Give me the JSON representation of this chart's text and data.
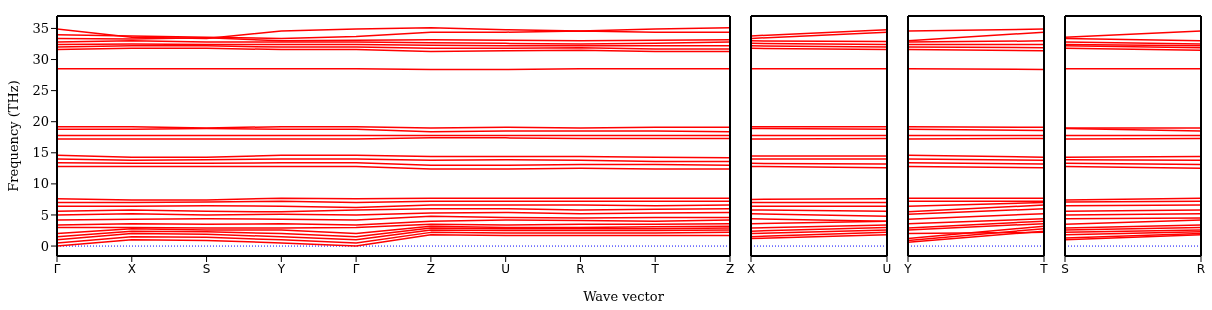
{
  "chart_data": [
    {
      "type": "line",
      "xlabel": "Wave vector",
      "ylabel": "Frequency (THz)",
      "categories": [
        "Γ",
        "X",
        "S",
        "Y",
        "Γ",
        "Z",
        "U",
        "R",
        "T",
        "Z"
      ],
      "ylim": [
        -1.6,
        37
      ],
      "yticks": [
        0,
        5,
        10,
        15,
        20,
        25,
        30,
        35
      ],
      "grid": false,
      "legend": false,
      "marker": "none",
      "line_style": "solid",
      "ref_lines": [
        {
          "axis": "y",
          "value": 0,
          "color": "#0000ff",
          "line_style": "dotted"
        }
      ],
      "series": [
        {
          "color": "#ff0000",
          "values": [
            0,
            1.0,
            0.9,
            0.5,
            0,
            1.8,
            1.7,
            1.7,
            1.7,
            1.7
          ]
        },
        {
          "color": "#ff0000",
          "values": [
            0.5,
            1.5,
            1.4,
            1.0,
            0.5,
            2.2,
            2.1,
            2.1,
            2.1,
            2.2
          ]
        },
        {
          "color": "#ff0000",
          "values": [
            1.0,
            2.0,
            1.9,
            1.5,
            1.0,
            2.6,
            2.5,
            2.5,
            2.5,
            2.6
          ]
        },
        {
          "color": "#ff0000",
          "values": [
            1.5,
            2.4,
            2.3,
            2.0,
            1.5,
            2.9,
            2.8,
            2.8,
            2.8,
            2.9
          ]
        },
        {
          "color": "#ff0000",
          "values": [
            2.0,
            2.8,
            2.6,
            2.6,
            2.0,
            3.2,
            3.0,
            3.0,
            3.1,
            3.2
          ]
        },
        {
          "color": "#ff0000",
          "values": [
            3.0,
            3.0,
            2.9,
            2.9,
            3.0,
            3.5,
            3.4,
            3.5,
            3.5,
            3.6
          ]
        },
        {
          "color": "#ff0000",
          "values": [
            3.4,
            3.6,
            3.5,
            3.6,
            3.4,
            4.0,
            4.2,
            4.1,
            4.0,
            4.2
          ]
        },
        {
          "color": "#ff0000",
          "values": [
            4.2,
            4.3,
            4.4,
            4.3,
            4.2,
            4.8,
            4.6,
            4.5,
            4.6,
            4.6
          ]
        },
        {
          "color": "#ff0000",
          "values": [
            5.0,
            5.2,
            5.0,
            5.1,
            5.0,
            5.3,
            5.4,
            5.2,
            5.3,
            5.4
          ]
        },
        {
          "color": "#ff0000",
          "values": [
            5.6,
            5.8,
            5.6,
            5.5,
            5.8,
            6.0,
            6.0,
            5.8,
            5.9,
            6.0
          ]
        },
        {
          "color": "#ff0000",
          "values": [
            6.4,
            6.4,
            6.5,
            6.4,
            6.2,
            6.6,
            6.6,
            6.6,
            6.5,
            6.6
          ]
        },
        {
          "color": "#ff0000",
          "values": [
            7.0,
            7.0,
            7.1,
            7.2,
            7.0,
            7.2,
            7.2,
            7.2,
            7.2,
            7.2
          ]
        },
        {
          "color": "#ff0000",
          "values": [
            7.6,
            7.4,
            7.4,
            7.7,
            7.6,
            7.7,
            7.7,
            7.7,
            7.7,
            7.7
          ]
        },
        {
          "color": "#ff0000",
          "values": [
            12.8,
            12.8,
            12.8,
            12.8,
            12.8,
            12.4,
            12.4,
            12.5,
            12.4,
            12.4
          ]
        },
        {
          "color": "#ff0000",
          "values": [
            13.4,
            13.3,
            13.3,
            13.4,
            13.4,
            13.0,
            13.0,
            13.1,
            13.1,
            13.0
          ]
        },
        {
          "color": "#ff0000",
          "values": [
            14.0,
            13.8,
            13.9,
            14.0,
            14.0,
            13.8,
            13.9,
            13.8,
            13.6,
            13.6
          ]
        },
        {
          "color": "#ff0000",
          "values": [
            14.6,
            14.3,
            14.3,
            14.6,
            14.6,
            14.4,
            14.4,
            14.4,
            14.3,
            14.2
          ]
        },
        {
          "color": "#ff0000",
          "values": [
            17.2,
            17.2,
            17.2,
            17.2,
            17.2,
            17.4,
            17.4,
            17.3,
            17.3,
            17.3
          ]
        },
        {
          "color": "#ff0000",
          "values": [
            17.8,
            17.8,
            17.8,
            17.8,
            17.8,
            17.8,
            17.8,
            17.8,
            17.8,
            17.8
          ]
        },
        {
          "color": "#ff0000",
          "values": [
            18.8,
            18.8,
            18.9,
            18.8,
            18.8,
            18.4,
            18.5,
            18.5,
            18.5,
            18.4
          ]
        },
        {
          "color": "#ff0000",
          "values": [
            19.2,
            19.2,
            19.0,
            19.2,
            19.2,
            19.0,
            19.1,
            19.0,
            19.1,
            19.1
          ]
        },
        {
          "color": "#ff0000",
          "values": [
            28.5,
            28.5,
            28.5,
            28.5,
            28.5,
            28.4,
            28.4,
            28.5,
            28.5,
            28.5
          ]
        },
        {
          "color": "#ff0000",
          "values": [
            31.6,
            31.8,
            31.8,
            31.6,
            31.6,
            31.3,
            31.4,
            31.5,
            31.3,
            31.3
          ]
        },
        {
          "color": "#ff0000",
          "values": [
            32.0,
            32.2,
            32.2,
            32.0,
            32.0,
            31.8,
            31.8,
            31.9,
            31.7,
            31.7
          ]
        },
        {
          "color": "#ff0000",
          "values": [
            32.4,
            32.5,
            32.4,
            32.4,
            32.4,
            32.3,
            32.2,
            32.2,
            32.2,
            32.2
          ]
        },
        {
          "color": "#ff0000",
          "values": [
            32.8,
            33.0,
            32.8,
            32.8,
            32.8,
            32.7,
            32.6,
            32.5,
            32.6,
            32.8
          ]
        },
        {
          "color": "#ff0000",
          "values": [
            33.4,
            33.3,
            33.5,
            33.0,
            33.1,
            33.2,
            33.1,
            33.0,
            33.1,
            33.2
          ]
        },
        {
          "color": "#ff0000",
          "values": [
            34.0,
            33.8,
            33.6,
            33.4,
            33.7,
            34.4,
            34.4,
            34.6,
            34.4,
            34.4
          ]
        },
        {
          "color": "#ff0000",
          "values": [
            34.9,
            33.6,
            33.4,
            34.6,
            34.9,
            35.1,
            34.8,
            34.6,
            34.9,
            35.1
          ]
        }
      ]
    },
    {
      "type": "line",
      "categories": [
        "X",
        "U"
      ],
      "ylim": [
        -1.6,
        37
      ],
      "tick_labels": "x",
      "legend": false,
      "marker": "none",
      "line_style": "solid",
      "ref_lines": [
        {
          "axis": "y",
          "value": 0,
          "color": "#0000ff",
          "line_style": "dotted"
        }
      ],
      "series": [
        {
          "color": "#ff0000",
          "values": [
            1.2,
            1.8
          ]
        },
        {
          "color": "#ff0000",
          "values": [
            1.5,
            2.2
          ]
        },
        {
          "color": "#ff0000",
          "values": [
            2.0,
            2.6
          ]
        },
        {
          "color": "#ff0000",
          "values": [
            2.4,
            3.0
          ]
        },
        {
          "color": "#ff0000",
          "values": [
            2.9,
            3.4
          ]
        },
        {
          "color": "#ff0000",
          "values": [
            3.6,
            4.0
          ]
        },
        {
          "color": "#ff0000",
          "values": [
            4.4,
            4.0
          ]
        },
        {
          "color": "#ff0000",
          "values": [
            5.2,
            4.8
          ]
        },
        {
          "color": "#ff0000",
          "values": [
            5.8,
            5.6
          ]
        },
        {
          "color": "#ff0000",
          "values": [
            6.4,
            6.4
          ]
        },
        {
          "color": "#ff0000",
          "values": [
            7.0,
            7.0
          ]
        },
        {
          "color": "#ff0000",
          "values": [
            7.5,
            7.6
          ]
        },
        {
          "color": "#ff0000",
          "values": [
            12.8,
            12.6
          ]
        },
        {
          "color": "#ff0000",
          "values": [
            13.3,
            13.2
          ]
        },
        {
          "color": "#ff0000",
          "values": [
            14.0,
            14.0
          ]
        },
        {
          "color": "#ff0000",
          "values": [
            14.5,
            14.5
          ]
        },
        {
          "color": "#ff0000",
          "values": [
            17.2,
            17.3
          ]
        },
        {
          "color": "#ff0000",
          "values": [
            17.8,
            17.8
          ]
        },
        {
          "color": "#ff0000",
          "values": [
            18.9,
            18.8
          ]
        },
        {
          "color": "#ff0000",
          "values": [
            19.2,
            19.2
          ]
        },
        {
          "color": "#ff0000",
          "values": [
            28.5,
            28.5
          ]
        },
        {
          "color": "#ff0000",
          "values": [
            31.8,
            31.6
          ]
        },
        {
          "color": "#ff0000",
          "values": [
            32.2,
            32.0
          ]
        },
        {
          "color": "#ff0000",
          "values": [
            32.6,
            32.4
          ]
        },
        {
          "color": "#ff0000",
          "values": [
            33.0,
            32.9
          ]
        },
        {
          "color": "#ff0000",
          "values": [
            33.4,
            34.4
          ]
        },
        {
          "color": "#ff0000",
          "values": [
            33.8,
            34.8
          ]
        }
      ]
    },
    {
      "type": "line",
      "categories": [
        "Y",
        "T"
      ],
      "ylim": [
        -1.6,
        37
      ],
      "tick_labels": "x",
      "legend": false,
      "marker": "none",
      "line_style": "solid",
      "ref_lines": [
        {
          "axis": "y",
          "value": 0,
          "color": "#0000ff",
          "line_style": "dotted"
        }
      ],
      "series": [
        {
          "color": "#ff0000",
          "values": [
            0.6,
            2.4
          ]
        },
        {
          "color": "#ff0000",
          "values": [
            0.9,
            2.8
          ]
        },
        {
          "color": "#ff0000",
          "values": [
            1.2,
            3.2
          ]
        },
        {
          "color": "#ff0000",
          "values": [
            2.0,
            2.2
          ]
        },
        {
          "color": "#ff0000",
          "values": [
            2.6,
            3.6
          ]
        },
        {
          "color": "#ff0000",
          "values": [
            2.9,
            4.0
          ]
        },
        {
          "color": "#ff0000",
          "values": [
            3.6,
            4.4
          ]
        },
        {
          "color": "#ff0000",
          "values": [
            4.3,
            5.2
          ]
        },
        {
          "color": "#ff0000",
          "values": [
            5.1,
            6.0
          ]
        },
        {
          "color": "#ff0000",
          "values": [
            5.5,
            6.6
          ]
        },
        {
          "color": "#ff0000",
          "values": [
            6.4,
            7.0
          ]
        },
        {
          "color": "#ff0000",
          "values": [
            7.2,
            7.2
          ]
        },
        {
          "color": "#ff0000",
          "values": [
            7.7,
            7.7
          ]
        },
        {
          "color": "#ff0000",
          "values": [
            12.8,
            12.6
          ]
        },
        {
          "color": "#ff0000",
          "values": [
            13.4,
            13.2
          ]
        },
        {
          "color": "#ff0000",
          "values": [
            14.0,
            13.8
          ]
        },
        {
          "color": "#ff0000",
          "values": [
            14.6,
            14.3
          ]
        },
        {
          "color": "#ff0000",
          "values": [
            17.2,
            17.3
          ]
        },
        {
          "color": "#ff0000",
          "values": [
            17.8,
            17.8
          ]
        },
        {
          "color": "#ff0000",
          "values": [
            18.8,
            18.6
          ]
        },
        {
          "color": "#ff0000",
          "values": [
            19.2,
            19.1
          ]
        },
        {
          "color": "#ff0000",
          "values": [
            28.5,
            28.4
          ]
        },
        {
          "color": "#ff0000",
          "values": [
            31.6,
            31.4
          ]
        },
        {
          "color": "#ff0000",
          "values": [
            32.0,
            31.9
          ]
        },
        {
          "color": "#ff0000",
          "values": [
            32.4,
            32.4
          ]
        },
        {
          "color": "#ff0000",
          "values": [
            32.8,
            33.0
          ]
        },
        {
          "color": "#ff0000",
          "values": [
            33.0,
            34.4
          ]
        },
        {
          "color": "#ff0000",
          "values": [
            34.6,
            34.9
          ]
        }
      ]
    },
    {
      "type": "line",
      "categories": [
        "S",
        "R"
      ],
      "ylim": [
        -1.6,
        37
      ],
      "tick_labels": "x",
      "legend": false,
      "marker": "none",
      "line_style": "solid",
      "ref_lines": [
        {
          "axis": "y",
          "value": 0,
          "color": "#0000ff",
          "line_style": "dotted"
        }
      ],
      "series": [
        {
          "color": "#ff0000",
          "values": [
            1.0,
            1.8
          ]
        },
        {
          "color": "#ff0000",
          "values": [
            1.3,
            2.0
          ]
        },
        {
          "color": "#ff0000",
          "values": [
            1.8,
            2.3
          ]
        },
        {
          "color": "#ff0000",
          "values": [
            2.2,
            2.6
          ]
        },
        {
          "color": "#ff0000",
          "values": [
            2.6,
            3.0
          ]
        },
        {
          "color": "#ff0000",
          "values": [
            2.9,
            3.4
          ]
        },
        {
          "color": "#ff0000",
          "values": [
            3.5,
            4.2
          ]
        },
        {
          "color": "#ff0000",
          "values": [
            4.4,
            4.5
          ]
        },
        {
          "color": "#ff0000",
          "values": [
            5.0,
            5.2
          ]
        },
        {
          "color": "#ff0000",
          "values": [
            5.6,
            5.8
          ]
        },
        {
          "color": "#ff0000",
          "values": [
            6.5,
            6.6
          ]
        },
        {
          "color": "#ff0000",
          "values": [
            7.1,
            7.2
          ]
        },
        {
          "color": "#ff0000",
          "values": [
            7.4,
            7.7
          ]
        },
        {
          "color": "#ff0000",
          "values": [
            12.8,
            12.5
          ]
        },
        {
          "color": "#ff0000",
          "values": [
            13.3,
            13.1
          ]
        },
        {
          "color": "#ff0000",
          "values": [
            13.9,
            13.8
          ]
        },
        {
          "color": "#ff0000",
          "values": [
            14.3,
            14.4
          ]
        },
        {
          "color": "#ff0000",
          "values": [
            17.2,
            17.3
          ]
        },
        {
          "color": "#ff0000",
          "values": [
            17.8,
            17.8
          ]
        },
        {
          "color": "#ff0000",
          "values": [
            18.9,
            18.5
          ]
        },
        {
          "color": "#ff0000",
          "values": [
            19.0,
            19.0
          ]
        },
        {
          "color": "#ff0000",
          "values": [
            28.5,
            28.5
          ]
        },
        {
          "color": "#ff0000",
          "values": [
            31.8,
            31.5
          ]
        },
        {
          "color": "#ff0000",
          "values": [
            32.2,
            31.9
          ]
        },
        {
          "color": "#ff0000",
          "values": [
            32.4,
            32.2
          ]
        },
        {
          "color": "#ff0000",
          "values": [
            32.8,
            32.5
          ]
        },
        {
          "color": "#ff0000",
          "values": [
            33.4,
            33.0
          ]
        },
        {
          "color": "#ff0000",
          "values": [
            33.6,
            34.6
          ]
        }
      ]
    }
  ]
}
